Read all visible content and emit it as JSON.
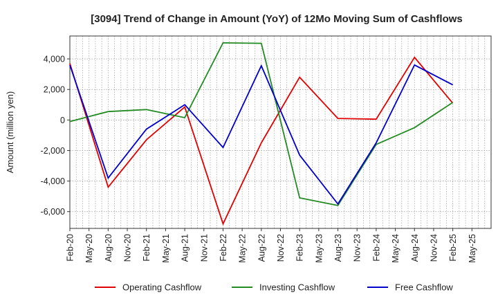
{
  "chart_data": {
    "type": "line",
    "title": "[3094]  Trend of Change in Amount (YoY) of 12Mo Moving Sum of Cashflows",
    "xlabel": "",
    "ylabel": "Amount (million yen)",
    "ylim": [
      -7100,
      5500
    ],
    "yticks": [
      -6000,
      -4000,
      -2000,
      0,
      2000,
      4000
    ],
    "ytick_labels": [
      "-6,000",
      "-4,000",
      "-2,000",
      "0",
      "2,000",
      "4,000"
    ],
    "categories": [
      "Feb-20",
      "May-20",
      "Aug-20",
      "Nov-20",
      "Feb-21",
      "May-21",
      "Aug-21",
      "Nov-21",
      "Feb-22",
      "May-22",
      "Aug-22",
      "Nov-22",
      "Feb-23",
      "May-23",
      "Aug-23",
      "Nov-23",
      "Feb-24",
      "May-24",
      "Aug-24",
      "Nov-24",
      "Feb-25",
      "May-25"
    ],
    "grid": true,
    "legend_position": "bottom",
    "series": [
      {
        "name": "Operating Cashflow",
        "color": "#e00000",
        "values": [
          3700,
          null,
          -4400,
          null,
          -1300,
          null,
          850,
          null,
          -6800,
          null,
          -1500,
          null,
          2800,
          null,
          100,
          null,
          50,
          null,
          4100,
          null,
          1100,
          null
        ]
      },
      {
        "name": "Investing Cashflow",
        "color": "#228b22",
        "values": [
          -100,
          null,
          550,
          null,
          680,
          null,
          150,
          null,
          5050,
          null,
          5020,
          null,
          -5100,
          null,
          -5600,
          null,
          -1600,
          null,
          -500,
          null,
          1150,
          null
        ]
      },
      {
        "name": "Free Cashflow",
        "color": "#0000cc",
        "values": [
          3600,
          null,
          -3800,
          null,
          -600,
          null,
          1000,
          null,
          -1800,
          null,
          3550,
          null,
          -2300,
          null,
          -5500,
          null,
          -1500,
          null,
          3600,
          null,
          2300,
          null
        ]
      }
    ]
  }
}
